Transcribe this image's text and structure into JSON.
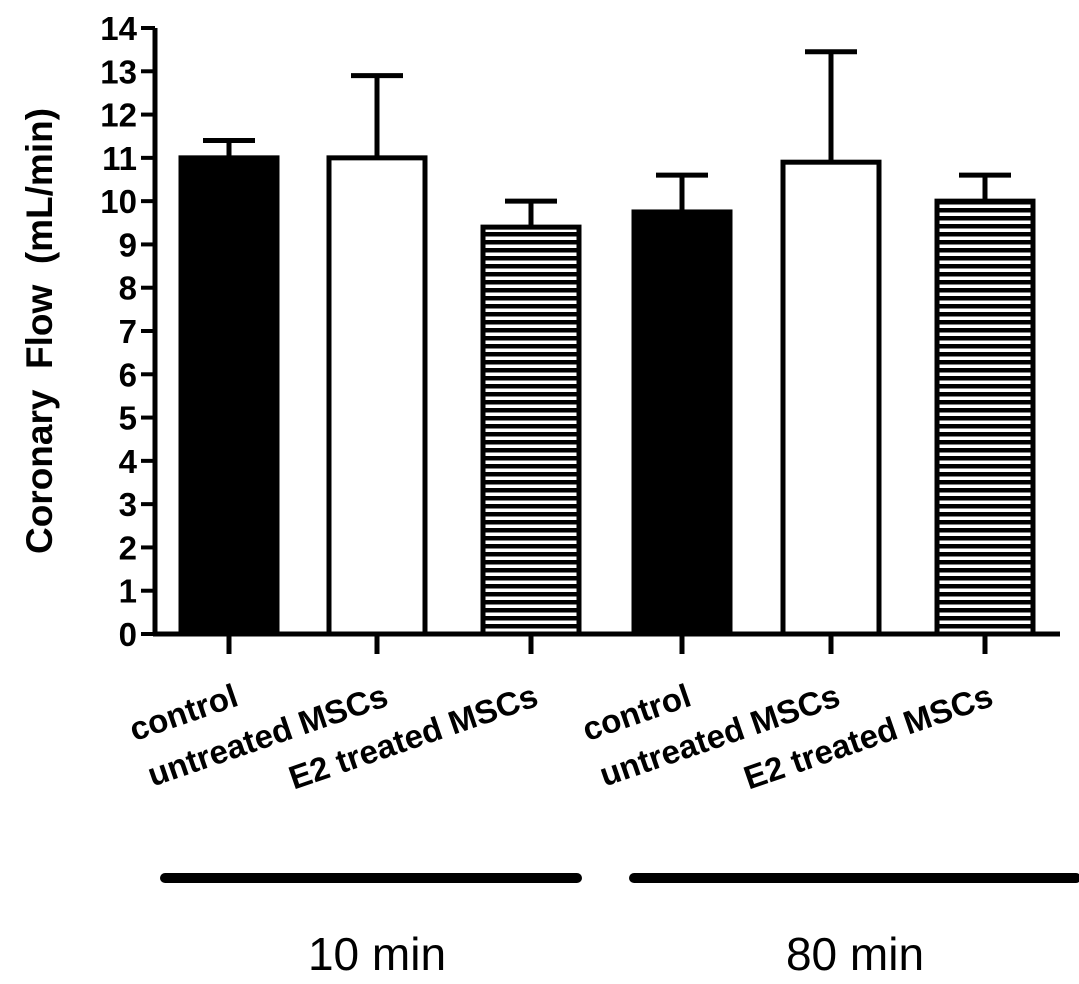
{
  "chart_data": {
    "type": "bar",
    "ylabel": "Coronary  Flow  (mL/min)",
    "ylim": [
      0,
      14
    ],
    "yticks": [
      "0",
      "1",
      "2",
      "3",
      "4",
      "5",
      "6",
      "7",
      "8",
      "9",
      "10",
      "11",
      "12",
      "13",
      "14"
    ],
    "categories": [
      "control",
      "untreated MSCs",
      "E2 treated MSCs",
      "control",
      "untreated MSCs",
      "E2 treated MSCs"
    ],
    "values": [
      11.0,
      11.0,
      9.4,
      9.75,
      10.9,
      10.0
    ],
    "errors": [
      0.4,
      1.9,
      0.6,
      0.85,
      2.55,
      0.6
    ],
    "fills": [
      "solid",
      "open",
      "hatched",
      "solid",
      "open",
      "hatched"
    ],
    "groups": [
      {
        "label": "10 min",
        "members": [
          0,
          1,
          2
        ]
      },
      {
        "label": "80 min",
        "members": [
          3,
          4,
          5
        ]
      }
    ],
    "colors": {
      "bar": "#000000",
      "background": "#ffffff"
    },
    "grid": false,
    "legend": "none"
  }
}
